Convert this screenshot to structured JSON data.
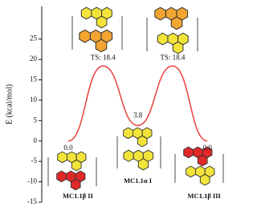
{
  "chart_data": {
    "type": "line",
    "y_label": "E (kcal/mol)",
    "categories": [
      "MC1.1β II",
      null,
      "MC1.1α I",
      null,
      "MC1.1β III"
    ],
    "values": [
      0,
      18.4,
      3.8,
      18.4,
      0
    ],
    "value_labels": [
      "0.0",
      "TS: 18.4",
      "3.8",
      "TS: 18.4",
      "0.0"
    ],
    "color": "#e8413c",
    "ylim": [
      -15,
      33
    ],
    "yticks": [
      -15,
      -10,
      -5,
      0,
      5,
      10,
      15,
      20,
      25
    ]
  }
}
